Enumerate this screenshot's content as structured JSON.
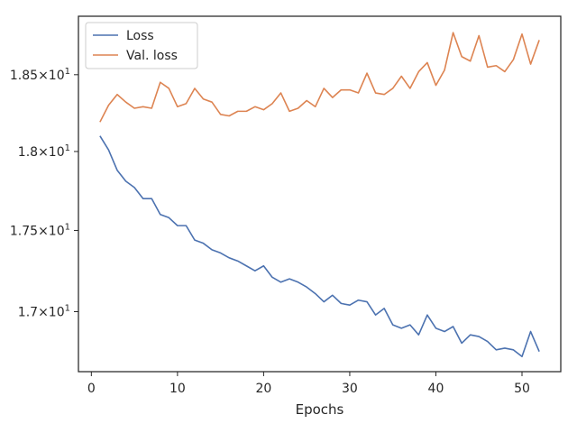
{
  "chart_data": {
    "type": "line",
    "title": "",
    "xlabel": "Epochs",
    "ylabel": "",
    "xlim": [
      -1.5,
      54.5
    ],
    "ylim": [
      16.64,
      18.89
    ],
    "yscale": "log",
    "grid": false,
    "legend_position": "top-left",
    "x_ticks": [
      0,
      10,
      20,
      30,
      40,
      50
    ],
    "x_tick_labels": [
      "0",
      "10",
      "20",
      "30",
      "40",
      "50"
    ],
    "y_ticks": [
      17.0,
      17.5,
      18.0,
      18.5
    ],
    "y_tick_labels": [
      {
        "mantissa": "1.7",
        "times": "×",
        "base": "10",
        "exp": "1"
      },
      {
        "mantissa": "1.75",
        "times": "×",
        "base": "10",
        "exp": "1"
      },
      {
        "mantissa": "1.8",
        "times": "×",
        "base": "10",
        "exp": "1"
      },
      {
        "mantissa": "1.85",
        "times": "×",
        "base": "10",
        "exp": "1"
      }
    ],
    "x": [
      1,
      2,
      3,
      4,
      5,
      6,
      7,
      8,
      9,
      10,
      11,
      12,
      13,
      14,
      15,
      16,
      17,
      18,
      19,
      20,
      21,
      22,
      23,
      24,
      25,
      26,
      27,
      28,
      29,
      30,
      31,
      32,
      33,
      34,
      35,
      36,
      37,
      38,
      39,
      40,
      41,
      42,
      43,
      44,
      45,
      46,
      47,
      48,
      49,
      50,
      51,
      52
    ],
    "series": [
      {
        "name": "Loss",
        "color": "#4c72b0",
        "values": [
          18.1,
          18.01,
          17.88,
          17.81,
          17.77,
          17.7,
          17.7,
          17.6,
          17.58,
          17.53,
          17.53,
          17.44,
          17.42,
          17.38,
          17.36,
          17.33,
          17.31,
          17.28,
          17.25,
          17.28,
          17.21,
          17.18,
          17.2,
          17.18,
          17.15,
          17.11,
          17.06,
          17.1,
          17.05,
          17.04,
          17.07,
          17.06,
          16.98,
          17.02,
          16.92,
          16.9,
          16.92,
          16.86,
          16.98,
          16.9,
          16.88,
          16.91,
          16.81,
          16.86,
          16.85,
          16.82,
          16.77,
          16.78,
          16.77,
          16.73,
          16.88,
          16.76
        ]
      },
      {
        "name": "Val. loss",
        "color": "#dd8452",
        "values": [
          18.19,
          18.3,
          18.37,
          18.32,
          18.28,
          18.29,
          18.28,
          18.45,
          18.41,
          18.29,
          18.31,
          18.41,
          18.34,
          18.32,
          18.24,
          18.23,
          18.26,
          18.26,
          18.29,
          18.27,
          18.31,
          18.38,
          18.26,
          18.28,
          18.33,
          18.29,
          18.41,
          18.35,
          18.4,
          18.4,
          18.38,
          18.51,
          18.38,
          18.37,
          18.41,
          18.49,
          18.41,
          18.52,
          18.58,
          18.43,
          18.53,
          18.78,
          18.62,
          18.59,
          18.76,
          18.55,
          18.56,
          18.52,
          18.6,
          18.77,
          18.57,
          18.73
        ]
      }
    ]
  }
}
